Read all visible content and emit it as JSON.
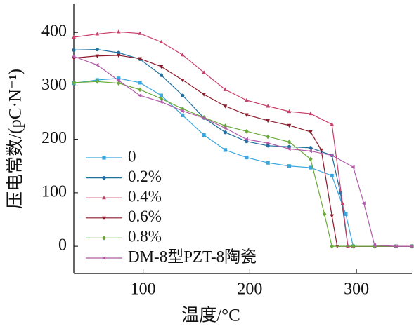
{
  "chart_data": {
    "type": "line",
    "x_label": "温度/°C",
    "y_label": "压电常数/(pC·N⁻¹)",
    "xlim": [
      35,
      352
    ],
    "ylim": [
      -51,
      454
    ],
    "xticks": [
      100,
      200,
      300
    ],
    "yticks": [
      0,
      100,
      200,
      300,
      400
    ],
    "series": [
      {
        "name": "0",
        "color": "#3aa6dd",
        "marker": "square",
        "x": [
          35,
          57,
          77,
          97,
          117,
          137,
          157,
          177,
          197,
          217,
          237,
          257,
          277,
          290,
          297,
          317,
          337,
          352
        ],
        "values": [
          305,
          311,
          314,
          306,
          282,
          245,
          208,
          180,
          166,
          156,
          150,
          147,
          132,
          60,
          0,
          0,
          0,
          0
        ]
      },
      {
        "name": "0.2%",
        "color": "#1f6f9f",
        "marker": "circle",
        "x": [
          35,
          57,
          77,
          97,
          117,
          137,
          157,
          177,
          197,
          217,
          237,
          257,
          277,
          285,
          292,
          297,
          317,
          337,
          352
        ],
        "values": [
          367,
          368,
          362,
          350,
          320,
          282,
          240,
          213,
          196,
          188,
          186,
          184,
          170,
          100,
          0,
          0,
          0,
          0,
          0
        ]
      },
      {
        "name": "0.4%",
        "color": "#c8406a",
        "marker": "triangle-up",
        "x": [
          35,
          57,
          77,
          97,
          117,
          137,
          157,
          177,
          197,
          217,
          237,
          257,
          277,
          287,
          292,
          297,
          317,
          337,
          352
        ],
        "values": [
          391,
          397,
          401,
          398,
          382,
          358,
          325,
          293,
          273,
          262,
          252,
          248,
          228,
          80,
          0,
          0,
          0,
          0,
          0
        ]
      },
      {
        "name": "0.6%",
        "color": "#8b1a2b",
        "marker": "triangle-down",
        "x": [
          35,
          57,
          77,
          97,
          117,
          137,
          157,
          177,
          197,
          217,
          237,
          257,
          267,
          277,
          282,
          297,
          317,
          337,
          352
        ],
        "values": [
          352,
          356,
          357,
          351,
          336,
          311,
          284,
          262,
          246,
          235,
          226,
          214,
          180,
          57,
          0,
          0,
          0,
          0,
          0
        ]
      },
      {
        "name": "0.8%",
        "color": "#6aaa3a",
        "marker": "diamond",
        "x": [
          35,
          57,
          77,
          97,
          117,
          137,
          157,
          177,
          197,
          217,
          237,
          257,
          270,
          277,
          297,
          317,
          337,
          352
        ],
        "values": [
          306,
          308,
          305,
          293,
          276,
          257,
          241,
          225,
          215,
          205,
          195,
          163,
          60,
          0,
          0,
          0,
          0,
          0
        ]
      },
      {
        "name": "DM-8型PZT-8陶瓷",
        "color": "#b05aa8",
        "marker": "triangle-left",
        "x": [
          35,
          57,
          77,
          97,
          117,
          137,
          157,
          177,
          197,
          217,
          237,
          257,
          277,
          297,
          307,
          317,
          337,
          352
        ],
        "values": [
          355,
          339,
          310,
          282,
          270,
          253,
          240,
          221,
          200,
          193,
          182,
          178,
          170,
          148,
          80,
          2,
          0,
          0
        ]
      }
    ]
  }
}
